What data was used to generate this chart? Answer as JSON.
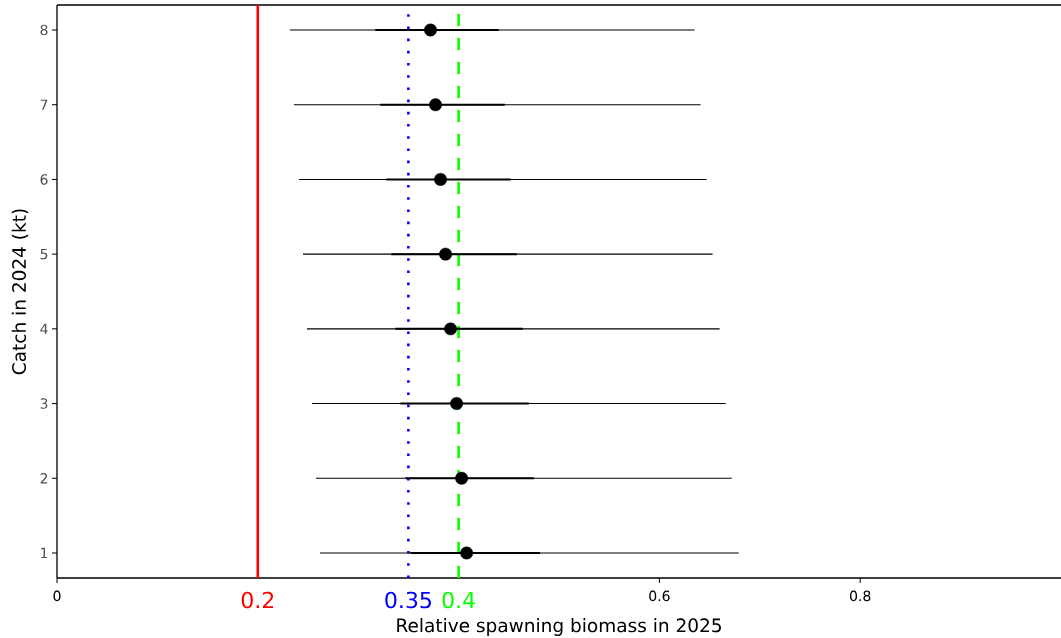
{
  "chart_data": {
    "type": "scatter",
    "xlabel": "Relative spawning biomass in 2025",
    "ylabel": "Catch in 2024 (kt)",
    "xlim": [
      0,
      1
    ],
    "ylim": [
      0.665,
      8.335
    ],
    "xticks": [
      0,
      0.6,
      0.8
    ],
    "yticks": [
      1,
      2,
      3,
      4,
      5,
      6,
      7,
      8
    ],
    "marker": "circle",
    "series": [
      {
        "color": "#000000",
        "x": [
          0.408,
          0.403,
          0.398,
          0.392,
          0.387,
          0.382,
          0.377,
          0.372
        ],
        "values": [
          1,
          2,
          3,
          4,
          5,
          6,
          7,
          8
        ],
        "xerrors": [
          [
            0.262,
            0.679
          ],
          [
            0.258,
            0.672
          ],
          [
            0.254,
            0.666
          ],
          [
            0.249,
            0.66
          ],
          [
            0.245,
            0.653
          ],
          [
            0.241,
            0.647
          ],
          [
            0.236,
            0.641
          ],
          [
            0.232,
            0.635
          ]
        ]
      },
      {
        "type": "line",
        "marker": "none",
        "color": "#000000",
        "x": [
          0.352,
          0.481
        ],
        "values": [
          1,
          1
        ]
      },
      {
        "type": "line",
        "marker": "none",
        "color": "#000000",
        "x": [
          0.347,
          0.475
        ],
        "values": [
          2,
          2
        ]
      },
      {
        "type": "line",
        "marker": "none",
        "color": "#000000",
        "x": [
          0.342,
          0.47
        ],
        "values": [
          3,
          3
        ]
      },
      {
        "type": "line",
        "marker": "none",
        "color": "#000000",
        "x": [
          0.337,
          0.464
        ],
        "values": [
          4,
          4
        ]
      },
      {
        "type": "line",
        "marker": "none",
        "color": "#000000",
        "x": [
          0.333,
          0.458
        ],
        "values": [
          5,
          5
        ]
      },
      {
        "type": "line",
        "marker": "none",
        "color": "#000000",
        "x": [
          0.328,
          0.452
        ],
        "values": [
          6,
          6
        ]
      },
      {
        "type": "line",
        "marker": "none",
        "color": "#000000",
        "x": [
          0.322,
          0.446
        ],
        "values": [
          7,
          7
        ]
      },
      {
        "type": "line",
        "marker": "none",
        "color": "#000000",
        "x": [
          0.317,
          0.44
        ],
        "values": [
          8,
          8
        ]
      }
    ],
    "ref_lines": [
      {
        "axis": "x",
        "value": 0.2,
        "label": "0.2",
        "color": "#ff0000",
        "line_style": "solid"
      },
      {
        "axis": "x",
        "value": 0.35,
        "label": "0.35",
        "color": "#0000ff",
        "line_style": "dotted"
      },
      {
        "axis": "x",
        "value": 0.4,
        "label": "0.4",
        "color": "#00ff00",
        "line_style": "dashed"
      }
    ]
  }
}
